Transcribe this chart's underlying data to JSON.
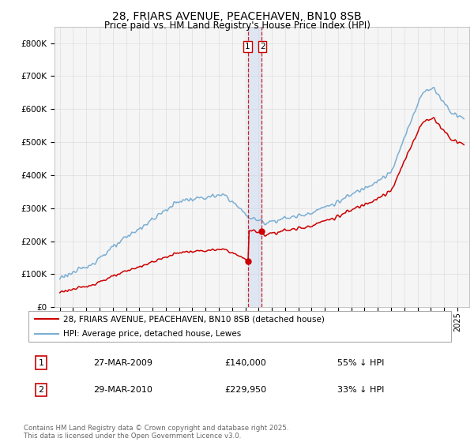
{
  "title": "28, FRIARS AVENUE, PEACEHAVEN, BN10 8SB",
  "subtitle": "Price paid vs. HM Land Registry's House Price Index (HPI)",
  "legend_line1": "28, FRIARS AVENUE, PEACEHAVEN, BN10 8SB (detached house)",
  "legend_line2": "HPI: Average price, detached house, Lewes",
  "sale1_date": "27-MAR-2009",
  "sale1_price": "£140,000",
  "sale1_hpi": "55% ↓ HPI",
  "sale2_date": "29-MAR-2010",
  "sale2_price": "£229,950",
  "sale2_hpi": "33% ↓ HPI",
  "copyright": "Contains HM Land Registry data © Crown copyright and database right 2025.\nThis data is licensed under the Open Government Licence v3.0.",
  "red_color": "#cc0000",
  "blue_color": "#7bafd4",
  "vline_color": "#cc0000",
  "grid_color": "#dddddd",
  "ylim_max": 850000,
  "ytick_interval": 100000,
  "background_color": "#ffffff",
  "plot_bg_color": "#f5f5f5",
  "sale1_year": 2009.23,
  "sale2_year": 2010.24,
  "sale1_price_val": 140000,
  "sale2_price_val": 229950
}
